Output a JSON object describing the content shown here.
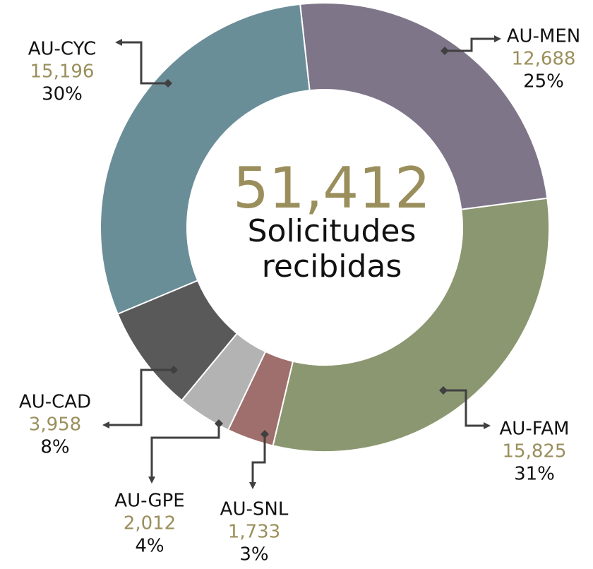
{
  "chart_data": {
    "type": "donut",
    "categories": [
      "AU-MEN",
      "AU-FAM",
      "AU-SNL",
      "AU-GPE",
      "AU-CAD",
      "AU-CYC"
    ],
    "values": [
      12688,
      15825,
      1733,
      2012,
      3958,
      15196
    ],
    "value_labels": [
      "12,688",
      "15,825",
      "1,733",
      "2,012",
      "3,958",
      "15,196"
    ],
    "percent_labels": [
      "25%",
      "31%",
      "3%",
      "4%",
      "8%",
      "30%"
    ],
    "colors": [
      "#7f7589",
      "#8b9770",
      "#9e6f6c",
      "#b3b3b3",
      "#595959",
      "#6a8e98"
    ],
    "total": 51412,
    "total_label": "51,412",
    "center_text": [
      "Solicitudes",
      "recibidas"
    ]
  }
}
